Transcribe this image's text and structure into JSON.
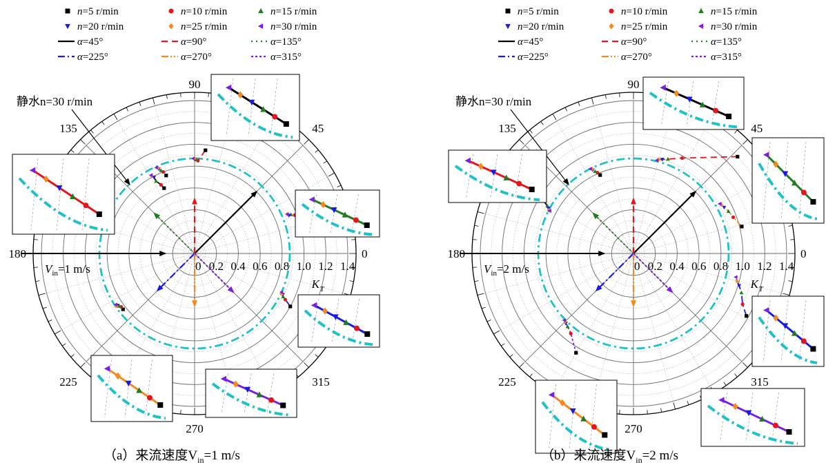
{
  "legend": {
    "speed_prefix": "n",
    "speed_unit": "=5 r/min",
    "speed_entries": [
      {
        "text": "=5 r/min",
        "marker": "square",
        "color": "#000000"
      },
      {
        "text": "=10 r/min",
        "marker": "circle",
        "color": "#e8141c"
      },
      {
        "text": "=15 r/min",
        "marker": "triangle-up",
        "color": "#1e7d1e"
      },
      {
        "text": "=20 r/min",
        "marker": "triangle-down",
        "color": "#1a1ae6"
      },
      {
        "text": "=25 r/min",
        "marker": "diamond",
        "color": "#f5891e"
      },
      {
        "text": "=30 r/min",
        "marker": "triangle-left",
        "color": "#7a1ee6"
      }
    ],
    "angle_prefix": "α",
    "angle_entries": [
      {
        "text": "=45°",
        "dash": "solid",
        "color": "#000000"
      },
      {
        "text": "=90°",
        "dash": "dash",
        "color": "#e8141c"
      },
      {
        "text": "=135°",
        "dash": "dot",
        "color": "#1e7d1e"
      },
      {
        "text": "=225°",
        "dash": "dashdot",
        "color": "#1a1ae6"
      },
      {
        "text": "=270°",
        "dash": "dashdotdot",
        "color": "#f5891e"
      },
      {
        "text": "=315°",
        "dash": "shortdot",
        "color": "#7a1ee6"
      }
    ]
  },
  "chart_data": [
    {
      "type": "scatter",
      "subtype": "polar",
      "caption": "（a）来流速度V",
      "caption_sub": "in",
      "caption_tail": "=1 m/s",
      "inflow_label": "V",
      "inflow_sub": "in",
      "inflow_value": "=1 m/s",
      "still_water_label": "静水n=30 r/min",
      "radial_axis_label": "K",
      "radial_axis_sub": "T",
      "radial_ticks": [
        "0",
        "0.2",
        "0.4",
        "0.6",
        "0.8",
        "1.0",
        "1.2",
        "1.4"
      ],
      "angle_ticks": [
        "0",
        "45",
        "90",
        "135",
        "180",
        "225",
        "270",
        "315"
      ],
      "r_max": 1.4,
      "still_water_radius": 0.87,
      "inflow_arrow_magnitude": 0.9,
      "thrust_arrows": [
        {
          "alpha": 45,
          "magnitude": 0.8,
          "color": "#000000"
        },
        {
          "alpha": 90,
          "magnitude": 0.5,
          "color": "#e8141c"
        },
        {
          "alpha": 135,
          "magnitude": 0.52,
          "color": "#1e7d1e"
        },
        {
          "alpha": 225,
          "magnitude": 0.48,
          "color": "#1a1ae6"
        },
        {
          "alpha": 270,
          "magnitude": 0.48,
          "color": "#f5891e"
        },
        {
          "alpha": 315,
          "magnitude": 0.5,
          "color": "#7a1ee6"
        }
      ],
      "series": [
        {
          "alpha": 45,
          "points": [
            {
              "theta": 115,
              "r": 0.66
            },
            {
              "theta": 116,
              "r": 0.7
            },
            {
              "theta": 118,
              "r": 0.75
            },
            {
              "theta": 118,
              "r": 0.79
            },
            {
              "theta": 119,
              "r": 0.81
            },
            {
              "theta": 119,
              "r": 0.82
            }
          ]
        },
        {
          "alpha": 90,
          "points": [
            {
              "theta": 84,
              "r": 0.95
            },
            {
              "theta": 88,
              "r": 0.85
            },
            {
              "theta": 89,
              "r": 0.86
            },
            {
              "theta": 90,
              "r": 0.86
            },
            {
              "theta": 90,
              "r": 0.87
            },
            {
              "theta": 91,
              "r": 0.87
            }
          ]
        },
        {
          "alpha": 135,
          "points": [
            {
              "theta": 110,
              "r": 0.76
            },
            {
              "theta": 111,
              "r": 0.8
            },
            {
              "theta": 112,
              "r": 0.82
            },
            {
              "theta": 113,
              "r": 0.84
            },
            {
              "theta": 113,
              "r": 0.85
            },
            {
              "theta": 114,
              "r": 0.86
            }
          ]
        },
        {
          "alpha": 225,
          "points": [
            {
              "theta": 331,
              "r": 1.0
            },
            {
              "theta": 333,
              "r": 0.93
            },
            {
              "theta": 334,
              "r": 0.9
            },
            {
              "theta": 335,
              "r": 0.89
            },
            {
              "theta": 335,
              "r": 0.88
            },
            {
              "theta": 336,
              "r": 0.87
            }
          ]
        },
        {
          "alpha": 270,
          "points": [
            {
              "theta": 20,
              "r": 1.04
            },
            {
              "theta": 21,
              "r": 0.98
            },
            {
              "theta": 22,
              "r": 0.95
            },
            {
              "theta": 22,
              "r": 0.93
            },
            {
              "theta": 23,
              "r": 0.92
            },
            {
              "theta": 23,
              "r": 0.92
            }
          ]
        },
        {
          "alpha": 315,
          "points": [
            {
              "theta": 218,
              "r": 0.83
            },
            {
              "theta": 216,
              "r": 0.83
            },
            {
              "theta": 215,
              "r": 0.84
            },
            {
              "theta": 214,
              "r": 0.85
            },
            {
              "theta": 214,
              "r": 0.86
            },
            {
              "theta": 213,
              "r": 0.86
            }
          ]
        }
      ]
    },
    {
      "type": "scatter",
      "subtype": "polar",
      "caption": "（b）来流速度V",
      "caption_sub": "in",
      "caption_tail": "=2 m/s",
      "inflow_label": "V",
      "inflow_sub": "in",
      "inflow_value": "=2 m/s",
      "still_water_label": "静水n=30 r/min",
      "radial_axis_label": "K",
      "radial_axis_sub": "T",
      "radial_ticks": [
        "0",
        "0.2",
        "0.4",
        "0.6",
        "0.8",
        "1.0",
        "1.2",
        "1.4"
      ],
      "angle_ticks": [
        "0",
        "45",
        "90",
        "135",
        "180",
        "225",
        "270",
        "315"
      ],
      "r_max": 1.4,
      "still_water_radius": 0.87,
      "inflow_arrow_magnitude": 0.9,
      "thrust_arrows": [
        {
          "alpha": 45,
          "magnitude": 0.8,
          "color": "#000000"
        },
        {
          "alpha": 90,
          "magnitude": 0.5,
          "color": "#e8141c"
        },
        {
          "alpha": 135,
          "magnitude": 0.52,
          "color": "#1e7d1e"
        },
        {
          "alpha": 225,
          "magnitude": 0.48,
          "color": "#1a1ae6"
        },
        {
          "alpha": 270,
          "magnitude": 0.48,
          "color": "#f5891e"
        },
        {
          "alpha": 315,
          "magnitude": 0.5,
          "color": "#7a1ee6"
        }
      ],
      "series": [
        {
          "alpha": 45,
          "points": [
            {
              "theta": 148,
              "r": 1.05
            },
            {
              "theta": 149,
              "r": 0.98
            },
            {
              "theta": 151,
              "r": 0.9
            },
            {
              "theta": 152,
              "r": 0.88
            },
            {
              "theta": 153,
              "r": 0.87
            },
            {
              "theta": 153,
              "r": 0.86
            }
          ]
        },
        {
          "alpha": 90,
          "points": [
            {
              "theta": 43,
              "r": 1.3
            },
            {
              "theta": 63,
              "r": 0.98
            },
            {
              "theta": 70,
              "r": 0.92
            },
            {
              "theta": 73,
              "r": 0.9
            },
            {
              "theta": 75,
              "r": 0.89
            },
            {
              "theta": 76,
              "r": 0.88
            }
          ]
        },
        {
          "alpha": 135,
          "points": [
            {
              "theta": 113,
              "r": 0.78
            },
            {
              "theta": 114,
              "r": 0.81
            },
            {
              "theta": 115,
              "r": 0.83
            },
            {
              "theta": 116,
              "r": 0.85
            },
            {
              "theta": 116,
              "r": 0.86
            },
            {
              "theta": 117,
              "r": 0.87
            }
          ]
        },
        {
          "alpha": 225,
          "points": [
            {
              "theta": 331,
              "r": 1.18
            },
            {
              "theta": 335,
              "r": 1.1
            },
            {
              "theta": 340,
              "r": 1.05
            },
            {
              "theta": 343,
              "r": 1.01
            },
            {
              "theta": 345,
              "r": 0.98
            },
            {
              "theta": 347,
              "r": 0.96
            }
          ]
        },
        {
          "alpha": 270,
          "points": [
            {
              "theta": 14,
              "r": 1.02
            },
            {
              "theta": 20,
              "r": 0.97
            },
            {
              "theta": 24,
              "r": 0.95
            },
            {
              "theta": 27,
              "r": 0.93
            },
            {
              "theta": 29,
              "r": 0.92
            },
            {
              "theta": 30,
              "r": 0.91
            }
          ]
        },
        {
          "alpha": 315,
          "points": [
            {
              "theta": 240,
              "r": 1.05
            },
            {
              "theta": 232,
              "r": 0.93
            },
            {
              "theta": 228,
              "r": 0.9
            },
            {
              "theta": 226,
              "r": 0.89
            },
            {
              "theta": 225,
              "r": 0.88
            },
            {
              "theta": 224,
              "r": 0.88
            }
          ]
        }
      ]
    }
  ]
}
